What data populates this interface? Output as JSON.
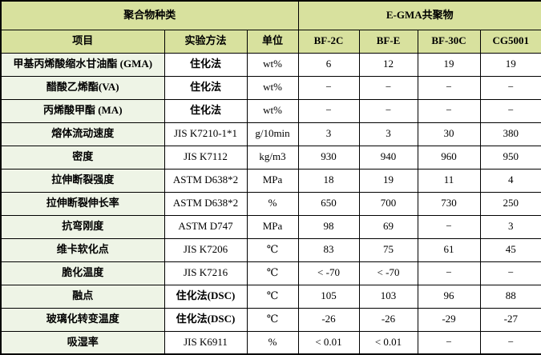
{
  "table": {
    "group_headers": [
      {
        "label": "聚合物种类",
        "colspan": 3
      },
      {
        "label": "E-GMA共聚物",
        "colspan": 4
      }
    ],
    "columns": [
      "项目",
      "实验方法",
      "单位",
      "BF-2C",
      "BF-E",
      "BF-30C",
      "CG5001"
    ],
    "rows": [
      {
        "item": "甲基丙烯酸缩水甘油酯 (GMA)",
        "method": "住化法",
        "unit": "wt%",
        "values": [
          "6",
          "12",
          "19",
          "19"
        ]
      },
      {
        "item": "醋酸乙烯酯(VA)",
        "method": "住化法",
        "unit": "wt%",
        "values": [
          "−",
          "−",
          "−",
          "−"
        ]
      },
      {
        "item": "丙烯酸甲酯 (MA)",
        "method": "住化法",
        "unit": "wt%",
        "values": [
          "−",
          "−",
          "−",
          "−"
        ]
      },
      {
        "item": "熔体流动速度",
        "method": "JIS K7210-1*1",
        "unit": "g/10min",
        "values": [
          "3",
          "3",
          "30",
          "380"
        ]
      },
      {
        "item": "密度",
        "method": "JIS K7112",
        "unit": "kg/m3",
        "values": [
          "930",
          "940",
          "960",
          "950"
        ]
      },
      {
        "item": "拉伸断裂强度",
        "method": "ASTM D638*2",
        "unit": "MPa",
        "values": [
          "18",
          "19",
          "11",
          "4"
        ]
      },
      {
        "item": "拉伸断裂伸长率",
        "method": "ASTM D638*2",
        "unit": "%",
        "values": [
          "650",
          "700",
          "730",
          "250"
        ]
      },
      {
        "item": "抗弯刚度",
        "method": "ASTM D747",
        "unit": "MPa",
        "values": [
          "98",
          "69",
          "−",
          "3"
        ]
      },
      {
        "item": "维卡软化点",
        "method": "JIS K7206",
        "unit": "℃",
        "values": [
          "83",
          "75",
          "61",
          "45"
        ]
      },
      {
        "item": "脆化温度",
        "method": "JIS K7216",
        "unit": "℃",
        "values": [
          "< -70",
          "< -70",
          "−",
          "−"
        ]
      },
      {
        "item": "融点",
        "method": "住化法(DSC)",
        "unit": "℃",
        "values": [
          "105",
          "103",
          "96",
          "88"
        ]
      },
      {
        "item": "玻璃化转变温度",
        "method": "住化法(DSC)",
        "unit": "℃",
        "values": [
          "-26",
          "-26",
          "-29",
          "-27"
        ]
      },
      {
        "item": "吸湿率",
        "method": "JIS K6911",
        "unit": "%",
        "values": [
          "< 0.01",
          "< 0.01",
          "−",
          "−"
        ]
      }
    ],
    "colors": {
      "header_bg": "#d8e19e",
      "item_bg": "#eef4e6",
      "border": "#000000",
      "cell_bg": "#ffffff"
    }
  }
}
